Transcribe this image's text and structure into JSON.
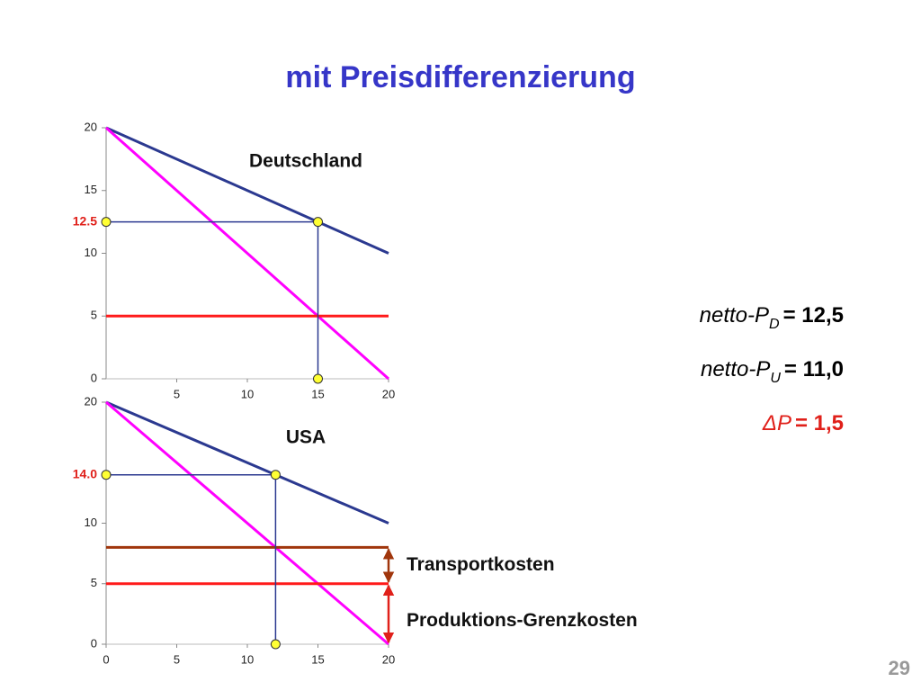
{
  "title": "mit Preisdifferenzierung",
  "chart_data": [
    {
      "type": "line",
      "title": "Deutschland",
      "xlim": [
        0,
        20
      ],
      "ylim": [
        0,
        20
      ],
      "xticks": [
        5,
        10,
        15,
        20
      ],
      "yticks": [
        0,
        5,
        10,
        15,
        20
      ],
      "series": [
        {
          "color": "#2b3990",
          "x": [
            0,
            20
          ],
          "values": [
            20,
            10
          ]
        },
        {
          "color": "#ff00ff",
          "x": [
            0,
            20
          ],
          "values": [
            20,
            0
          ]
        },
        {
          "color": "#ff1a1a",
          "x": [
            0,
            20
          ],
          "values": [
            5,
            5
          ]
        }
      ],
      "price": 12.5,
      "quantity": 15,
      "price_color": "#e0201a"
    },
    {
      "type": "line",
      "title": "USA",
      "xlim": [
        0,
        20
      ],
      "ylim": [
        0,
        20
      ],
      "xticks": [
        0,
        5,
        10,
        15,
        20
      ],
      "yticks": [
        0,
        5,
        10,
        20
      ],
      "series": [
        {
          "color": "#2b3990",
          "x": [
            0,
            20
          ],
          "values": [
            20,
            10
          ]
        },
        {
          "color": "#ff00ff",
          "x": [
            0,
            20
          ],
          "values": [
            20,
            0
          ]
        },
        {
          "color": "#a0360c",
          "x": [
            0,
            20
          ],
          "values": [
            8,
            8
          ]
        },
        {
          "color": "#ff1a1a",
          "x": [
            0,
            20
          ],
          "values": [
            5,
            5
          ]
        }
      ],
      "price": {
        "value": 14,
        "label": "14.0"
      },
      "quantity": 12,
      "price_color": "#e0201a",
      "brackets": [
        {
          "label": "Transportkosten",
          "from": 5,
          "to": 8,
          "color": "#a0360c"
        },
        {
          "label": "Produktions-Grenzkosten",
          "from": 0,
          "to": 5,
          "color": "#e0201a"
        }
      ]
    }
  ],
  "results": [
    {
      "text": "netto-P",
      "sub": "D",
      "value": "= 12,5"
    },
    {
      "text": "netto-P",
      "sub": "U",
      "value": "= 11,0"
    },
    {
      "text": "ΔP",
      "value": "= 1,5"
    }
  ],
  "page": "29"
}
